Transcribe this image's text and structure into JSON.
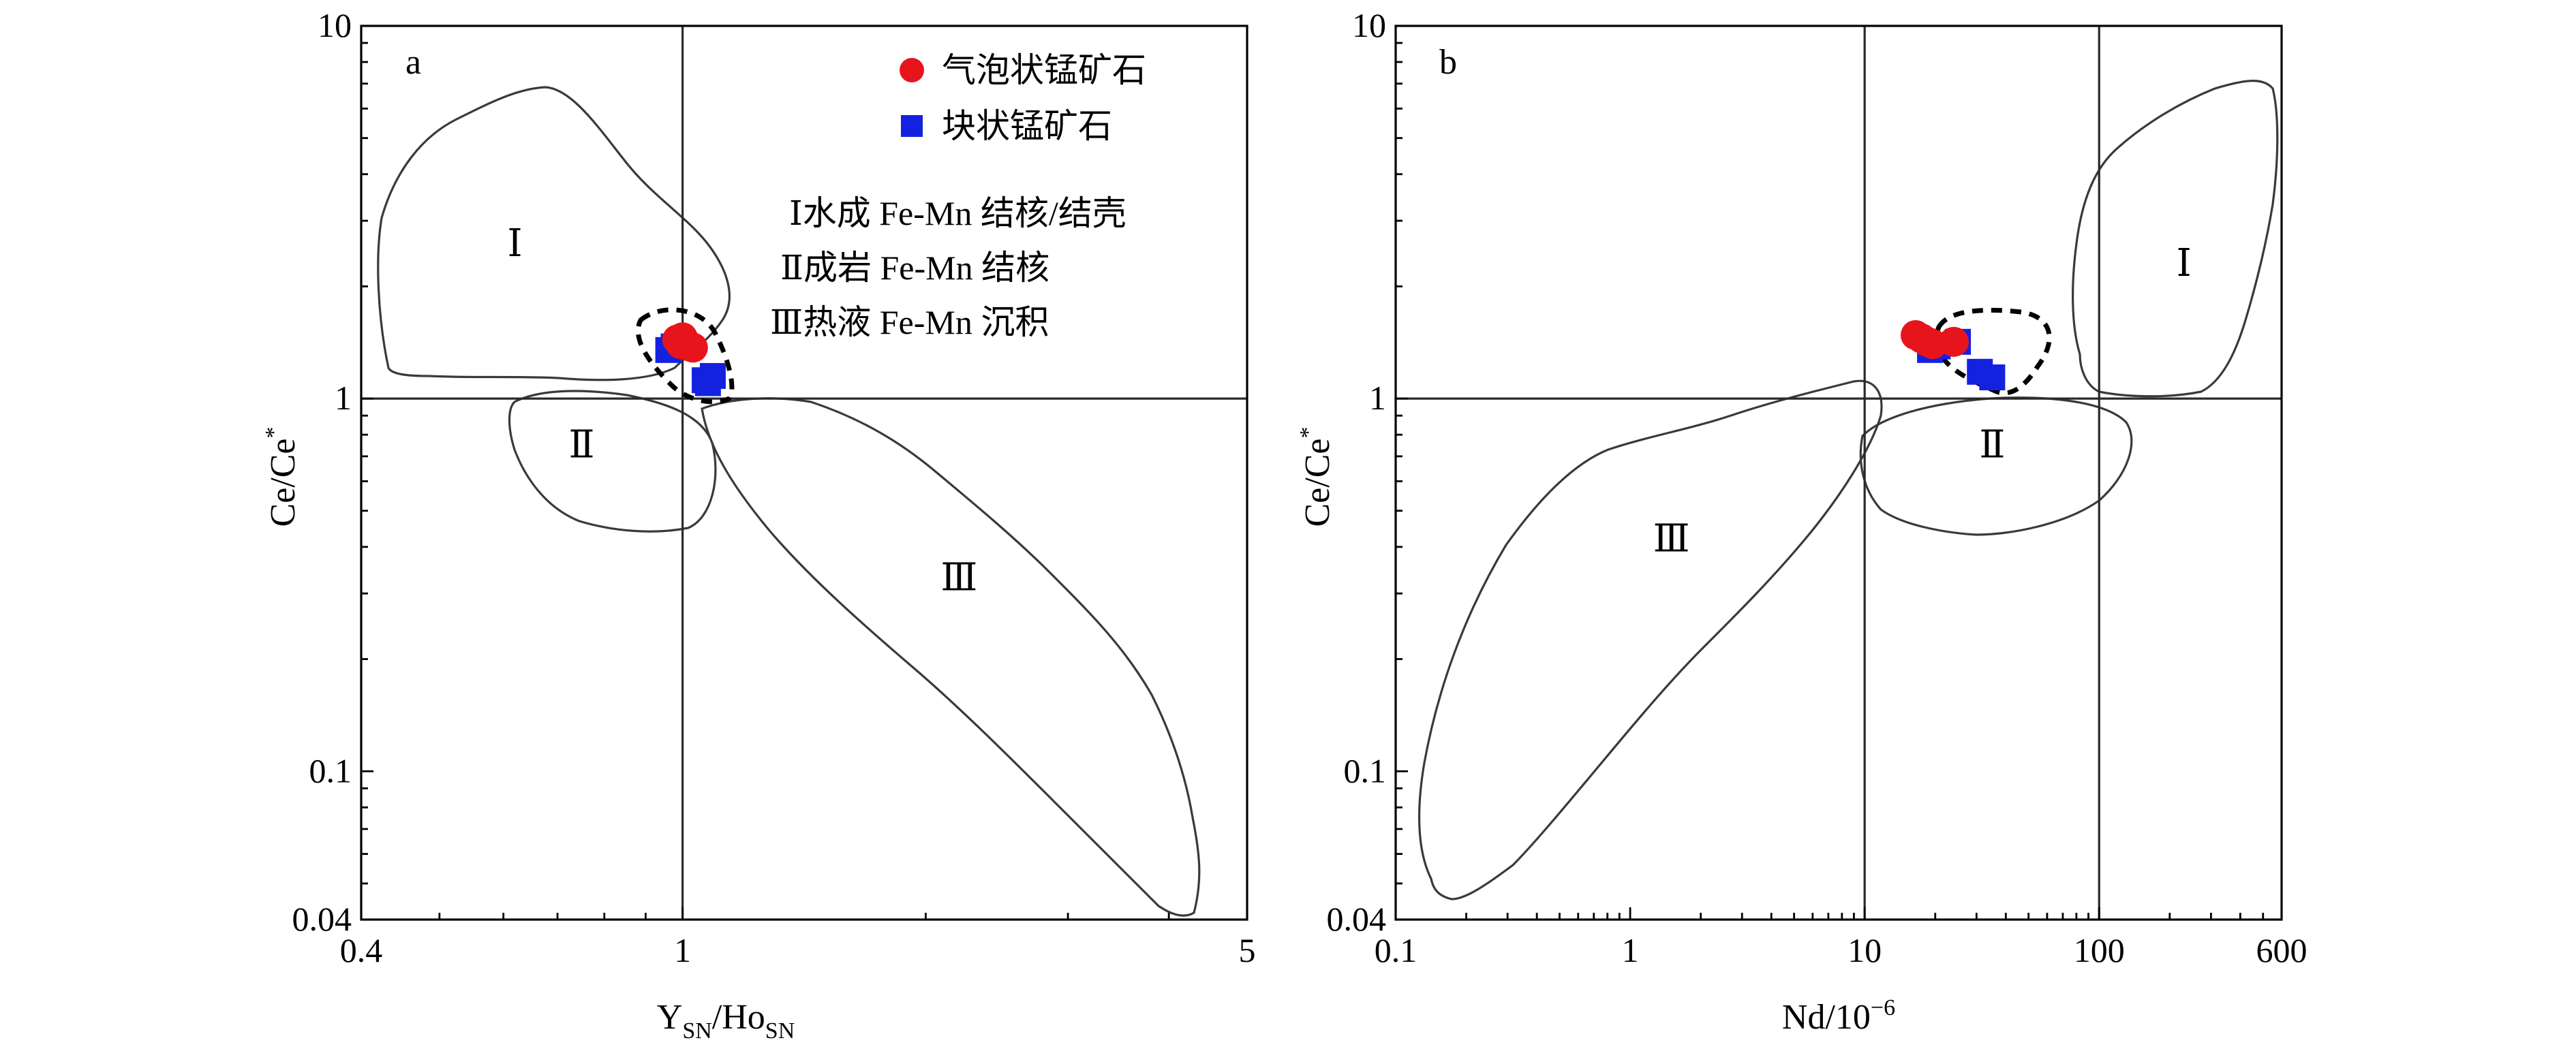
{
  "colors": {
    "bubble_ore": "#e8141c",
    "massive_ore": "#1422e0",
    "outline": "#3a3a3a"
  },
  "legend": {
    "items": [
      {
        "label": "气泡状锰矿石",
        "marker": "circle",
        "color": "#e8141c"
      },
      {
        "label": "块状锰矿石",
        "marker": "square",
        "color": "#1422e0"
      }
    ],
    "regions": [
      "Ⅰ水成 Fe-Mn 结核/结壳",
      "Ⅱ成岩 Fe-Mn 结核",
      "Ⅲ热液 Fe-Mn 沉积"
    ]
  },
  "chart_data": [
    {
      "type": "scatter",
      "panel_label": "a",
      "x_scale": "log",
      "y_scale": "log",
      "xlim": [
        0.4,
        5
      ],
      "ylim": [
        0.04,
        10
      ],
      "x_ticks": [
        {
          "value": 0.4,
          "label": "0.4"
        },
        {
          "value": 1,
          "label": "1"
        },
        {
          "value": 5,
          "label": "5"
        }
      ],
      "y_ticks": [
        {
          "value": 0.04,
          "label": "0.04"
        },
        {
          "value": 0.1,
          "label": "0.1"
        },
        {
          "value": 1,
          "label": "1"
        },
        {
          "value": 10,
          "label": "10"
        }
      ],
      "xlabel_main": "Y",
      "xlabel_sub1": "SN",
      "xlabel_mid": "/Ho",
      "xlabel_sub2": "SN",
      "ylabel_main": "Ce/Ce",
      "ylabel_sup": "*",
      "reference_lines": {
        "x": [
          1
        ],
        "y": [
          1
        ]
      },
      "region_labels": [
        {
          "text": "Ⅰ",
          "x": 0.62,
          "y": 2.6
        },
        {
          "text": "Ⅱ",
          "x": 0.75,
          "y": 0.75
        },
        {
          "text": "Ⅲ",
          "x": 2.2,
          "y": 0.33
        }
      ],
      "series": [
        {
          "name": "气泡状锰矿石",
          "marker": "circle",
          "color": "#e8141c",
          "points": [
            [
              0.985,
              1.44
            ],
            [
              1.0,
              1.46
            ],
            [
              1.01,
              1.41
            ],
            [
              1.02,
              1.38
            ],
            [
              0.995,
              1.4
            ],
            [
              1.03,
              1.37
            ]
          ]
        },
        {
          "name": "块状锰矿石",
          "marker": "square",
          "color": "#1422e0",
          "points": [
            [
              0.96,
              1.35
            ],
            [
              0.975,
              1.38
            ],
            [
              1.065,
              1.12
            ],
            [
              1.09,
              1.15
            ],
            [
              1.075,
              1.1
            ]
          ]
        }
      ]
    },
    {
      "type": "scatter",
      "panel_label": "b",
      "x_scale": "log",
      "y_scale": "log",
      "xlim": [
        0.1,
        600
      ],
      "ylim": [
        0.04,
        10
      ],
      "x_ticks": [
        {
          "value": 0.1,
          "label": "0.1"
        },
        {
          "value": 1,
          "label": "1"
        },
        {
          "value": 10,
          "label": "10"
        },
        {
          "value": 100,
          "label": "100"
        },
        {
          "value": 600,
          "label": "600"
        }
      ],
      "y_ticks": [
        {
          "value": 0.04,
          "label": "0.04"
        },
        {
          "value": 0.1,
          "label": "0.1"
        },
        {
          "value": 1,
          "label": "1"
        },
        {
          "value": 10,
          "label": "10"
        }
      ],
      "xlabel_main": "Nd/10",
      "xlabel_sup": "−6",
      "ylabel_main": "Ce/Ce",
      "ylabel_sup": "*",
      "reference_lines": {
        "x": [
          10,
          100
        ],
        "y": [
          1
        ]
      },
      "region_labels": [
        {
          "text": "Ⅰ",
          "x": 230,
          "y": 2.3
        },
        {
          "text": "Ⅱ",
          "x": 35,
          "y": 0.75
        },
        {
          "text": "Ⅲ",
          "x": 1.5,
          "y": 0.42
        }
      ],
      "series": [
        {
          "name": "气泡状锰矿石",
          "marker": "circle",
          "color": "#e8141c",
          "points": [
            [
              16.5,
              1.48
            ],
            [
              17.5,
              1.45
            ],
            [
              18.5,
              1.42
            ],
            [
              19.5,
              1.4
            ],
            [
              24,
              1.42
            ]
          ]
        },
        {
          "name": "块状锰矿石",
          "marker": "square",
          "color": "#1422e0",
          "points": [
            [
              19,
              1.35
            ],
            [
              20.5,
              1.38
            ],
            [
              25,
              1.42
            ],
            [
              31,
              1.18
            ],
            [
              35,
              1.14
            ]
          ]
        }
      ]
    }
  ]
}
